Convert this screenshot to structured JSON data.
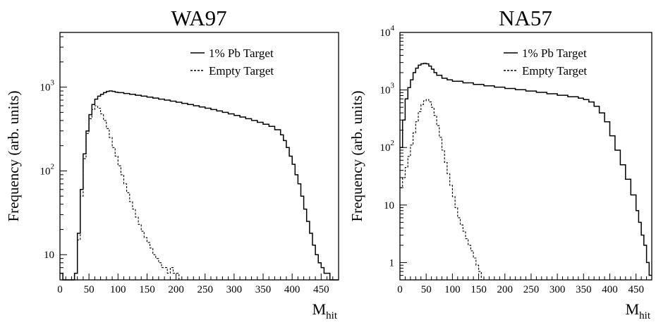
{
  "chart_data": [
    {
      "type": "line",
      "title": "WA97",
      "ylabel": "Frequency (arb. units)",
      "xlabel": "M",
      "xlabel_subscript": "hit",
      "y_scale": "log",
      "xlim": [
        0,
        480
      ],
      "ylim": [
        5,
        4500
      ],
      "x_tick_labels": [
        "0",
        "50",
        "100",
        "150",
        "200",
        "250",
        "300",
        "350",
        "400",
        "450"
      ],
      "y_ticks": [
        {
          "value": 10,
          "base": "10",
          "exp": ""
        },
        {
          "value": 100,
          "base": "10",
          "exp": "2"
        },
        {
          "value": 1000,
          "base": "10",
          "exp": "3"
        }
      ],
      "legend_position": "top-right",
      "grid": false,
      "series": [
        {
          "name": "1% Pb Target",
          "style": "solid",
          "x": [
            0,
            5,
            10,
            15,
            20,
            25,
            30,
            35,
            40,
            45,
            50,
            55,
            60,
            65,
            70,
            75,
            80,
            85,
            90,
            95,
            100,
            110,
            120,
            130,
            140,
            150,
            160,
            170,
            180,
            190,
            200,
            210,
            220,
            230,
            240,
            250,
            260,
            270,
            280,
            290,
            300,
            310,
            320,
            330,
            340,
            350,
            360,
            370,
            380,
            385,
            390,
            395,
            400,
            405,
            410,
            415,
            420,
            425,
            430,
            435,
            440,
            445,
            450,
            455,
            460,
            465,
            470,
            475
          ],
          "values": [
            6,
            5,
            5,
            5,
            5,
            6,
            18,
            60,
            160,
            300,
            470,
            620,
            720,
            780,
            820,
            860,
            890,
            900,
            890,
            870,
            860,
            840,
            820,
            800,
            780,
            760,
            740,
            720,
            700,
            680,
            660,
            640,
            620,
            600,
            580,
            560,
            540,
            520,
            500,
            480,
            460,
            440,
            420,
            400,
            380,
            360,
            340,
            310,
            270,
            230,
            190,
            150,
            120,
            90,
            70,
            50,
            35,
            25,
            18,
            13,
            10,
            8,
            7,
            6,
            6,
            5,
            5,
            5
          ]
        },
        {
          "name": "Empty Target",
          "style": "dashed",
          "x": [
            0,
            5,
            10,
            15,
            20,
            25,
            30,
            35,
            40,
            45,
            50,
            55,
            60,
            65,
            70,
            75,
            80,
            85,
            90,
            95,
            100,
            105,
            110,
            115,
            120,
            125,
            130,
            135,
            140,
            145,
            150,
            155,
            160,
            165,
            170,
            175,
            180,
            185,
            190,
            195,
            200,
            205
          ],
          "values": [
            6,
            5,
            5,
            5,
            5,
            6,
            15,
            50,
            140,
            280,
            420,
            540,
            600,
            560,
            480,
            400,
            320,
            250,
            190,
            150,
            115,
            90,
            70,
            55,
            43,
            35,
            28,
            23,
            19,
            16,
            14,
            12,
            10,
            9,
            8,
            7,
            7,
            6,
            7,
            6,
            6,
            5
          ]
        }
      ]
    },
    {
      "type": "line",
      "title": "NA57",
      "ylabel": "Frequency (arb. units)",
      "xlabel": "M",
      "xlabel_subscript": "hit",
      "y_scale": "log",
      "xlim": [
        0,
        480
      ],
      "ylim": [
        0.5,
        10000
      ],
      "x_tick_labels": [
        "0",
        "50",
        "100",
        "150",
        "200",
        "250",
        "300",
        "350",
        "400",
        "450"
      ],
      "y_ticks": [
        {
          "value": 1,
          "base": "1",
          "exp": ""
        },
        {
          "value": 10,
          "base": "10",
          "exp": ""
        },
        {
          "value": 100,
          "base": "10",
          "exp": "2"
        },
        {
          "value": 1000,
          "base": "10",
          "exp": "3"
        },
        {
          "value": 10000,
          "base": "10",
          "exp": "4"
        }
      ],
      "legend_position": "top-right",
      "grid": false,
      "series": [
        {
          "name": "1% Pb Target",
          "style": "solid",
          "x": [
            0,
            5,
            10,
            15,
            20,
            25,
            30,
            35,
            40,
            45,
            50,
            55,
            60,
            65,
            70,
            80,
            90,
            100,
            120,
            140,
            160,
            180,
            200,
            220,
            240,
            260,
            280,
            300,
            320,
            340,
            350,
            360,
            370,
            380,
            390,
            400,
            410,
            420,
            430,
            440,
            450,
            455,
            460,
            465,
            470,
            475
          ],
          "values": [
            100,
            300,
            700,
            1100,
            1500,
            2000,
            2400,
            2700,
            2850,
            2900,
            2850,
            2600,
            2300,
            2000,
            1800,
            1600,
            1500,
            1420,
            1330,
            1250,
            1180,
            1120,
            1060,
            1010,
            960,
            910,
            860,
            810,
            760,
            720,
            680,
            620,
            520,
            400,
            280,
            160,
            90,
            50,
            28,
            15,
            8,
            5,
            3,
            2,
            1,
            0.6
          ]
        },
        {
          "name": "Empty Target",
          "style": "dashed",
          "x": [
            0,
            5,
            10,
            15,
            20,
            25,
            30,
            35,
            40,
            45,
            50,
            55,
            60,
            65,
            70,
            75,
            80,
            85,
            90,
            95,
            100,
            105,
            110,
            115,
            120,
            125,
            130,
            135,
            140,
            145,
            150,
            155
          ],
          "values": [
            20,
            30,
            45,
            70,
            110,
            180,
            280,
            420,
            560,
            650,
            680,
            620,
            500,
            360,
            240,
            150,
            90,
            55,
            35,
            22,
            14,
            9,
            6,
            4.5,
            3.5,
            2.6,
            2,
            1.6,
            1.2,
            0.9,
            0.7,
            0.5
          ]
        }
      ]
    }
  ]
}
